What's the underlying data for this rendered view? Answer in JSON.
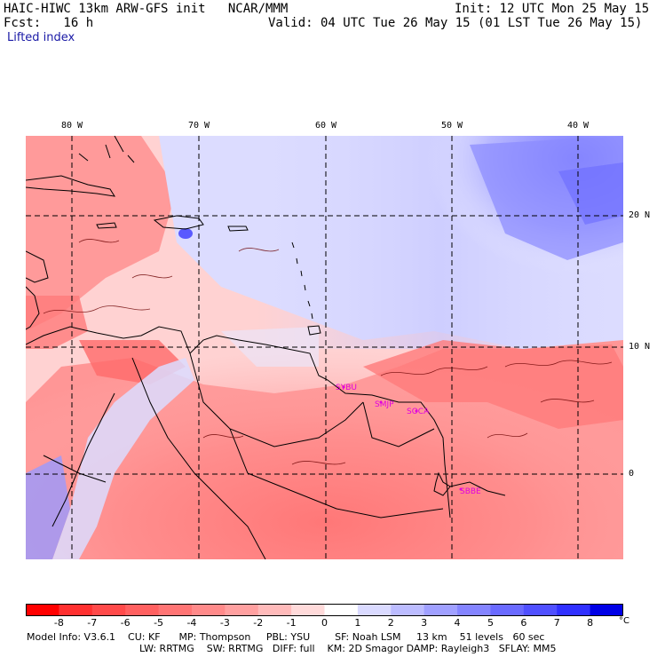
{
  "header": {
    "title": "HAIC-HIWC 13km ARW-GFS init   NCAR/MMM",
    "init": "Init: 12 UTC Mon 25 May 15",
    "fcst": "Fcst:   16 h",
    "valid": "Valid: 04 UTC Tue 26 May 15 (01 LST Tue 26 May 15)",
    "field": "Lifted index"
  },
  "map": {
    "lon_labels": [
      "80 W",
      "70 W",
      "60 W",
      "50 W",
      "40 W"
    ],
    "lat_labels": [
      "20 N",
      "10 N",
      "0"
    ],
    "stations": [
      "SYBU",
      "SMJP",
      "SOCA",
      "SBBE"
    ]
  },
  "colorbar": {
    "ticks": [
      "-8",
      "-7",
      "-6",
      "-5",
      "-4",
      "-3",
      "-2",
      "-1",
      "0",
      "1",
      "2",
      "3",
      "4",
      "5",
      "6",
      "7",
      "8"
    ],
    "unit": "°C",
    "colors": [
      "#ff0000",
      "#ff3030",
      "#ff4a4a",
      "#ff6060",
      "#ff7474",
      "#ff8a8a",
      "#ffa0a0",
      "#ffbaba",
      "#ffdada",
      "#ffffff",
      "#dadaff",
      "#bcbcff",
      "#a0a0ff",
      "#8484ff",
      "#6a6aff",
      "#5050ff",
      "#3030ff",
      "#0000e6"
    ]
  },
  "model_info": {
    "line1": "Model Info: V3.6.1    CU: KF      MP: Thompson     PBL: YSU        SF: Noah LSM     13 km    51 levels   60 sec",
    "line2": "LW: RRTMG    SW: RRTMG   DIFF: full    KM: 2D Smagor DAMP: Rayleigh3   SFLAY: MM5"
  }
}
